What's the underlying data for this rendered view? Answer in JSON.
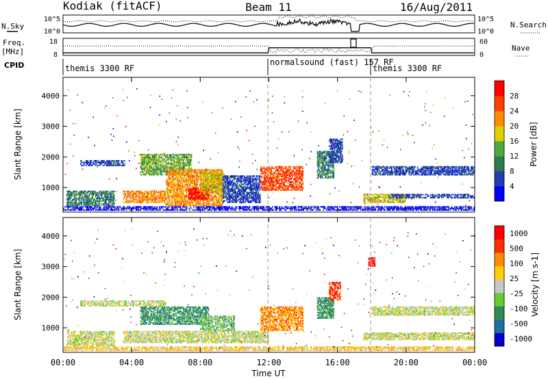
{
  "header": {
    "station": "Kodiak (fitACF)",
    "beam": "Beam 11",
    "date": "16/Aug/2011"
  },
  "top_panels": {
    "nsky_label": "N.Sky",
    "nsearch_label": "N.Search",
    "nsky_ticks": [
      "10^5",
      "10^0"
    ],
    "nsearch_ticks": [
      "10^5",
      "10^0"
    ],
    "freq_label": "Freq.",
    "freq_unit": "[MHz]",
    "freq_ticks": [
      "18",
      "8"
    ],
    "nave_label": "Nave",
    "nave_ticks": [
      "60",
      "0"
    ],
    "cpid_label": "CPID",
    "cpid_segments": [
      "themis 3300 RF",
      "normalsound (fast) 157 RF",
      "themis 3300 RF"
    ]
  },
  "chart_data": [
    {
      "type": "heatmap",
      "name": "power",
      "ylabel": "Slant Range [km]",
      "yticks": [
        "1000",
        "2000",
        "3000",
        "4000"
      ],
      "ylim": [
        200,
        4600
      ],
      "xlim": [
        "00:00",
        "24:00"
      ],
      "colorbar_label": "Power [dB]",
      "colorbar_ticks": [
        "4",
        "8",
        "12",
        "16",
        "20",
        "24",
        "28"
      ],
      "colors": [
        "#0000ff",
        "#1f3fb0",
        "#2e7a4e",
        "#4aaa3c",
        "#e0d000",
        "#ff8c00",
        "#ff4000",
        "#ff0000"
      ],
      "blobs": [
        {
          "t0": 0.2,
          "t1": 3.0,
          "r0": 400,
          "r1": 900,
          "level": 2
        },
        {
          "t0": 1.0,
          "t1": 3.6,
          "r0": 1700,
          "r1": 1900,
          "level": 1
        },
        {
          "t0": 3.5,
          "t1": 6.0,
          "r0": 500,
          "r1": 900,
          "level": 5
        },
        {
          "t0": 4.5,
          "t1": 7.5,
          "r0": 1400,
          "r1": 2100,
          "level": 3
        },
        {
          "t0": 6.0,
          "t1": 9.3,
          "r0": 400,
          "r1": 1600,
          "level": 5
        },
        {
          "t0": 7.3,
          "t1": 8.5,
          "r0": 600,
          "r1": 1000,
          "level": 7
        },
        {
          "t0": 8.0,
          "t1": 9.4,
          "r0": 800,
          "r1": 1500,
          "level": 4
        },
        {
          "t0": 9.3,
          "t1": 11.5,
          "r0": 500,
          "r1": 1400,
          "level": 1
        },
        {
          "t0": 11.5,
          "t1": 14.0,
          "r0": 900,
          "r1": 1700,
          "level": 6
        },
        {
          "t0": 14.8,
          "t1": 15.8,
          "r0": 1300,
          "r1": 2200,
          "level": 2
        },
        {
          "t0": 15.5,
          "t1": 16.3,
          "r0": 1800,
          "r1": 2600,
          "level": 1
        },
        {
          "t0": 17.5,
          "t1": 20.0,
          "r0": 500,
          "r1": 800,
          "level": 4
        },
        {
          "t0": 18.0,
          "t1": 24.0,
          "r0": 1400,
          "r1": 1700,
          "level": 1
        },
        {
          "t0": 19.0,
          "t1": 24.0,
          "r0": 650,
          "r1": 800,
          "level": 1
        },
        {
          "t0": 0.0,
          "t1": 24.0,
          "r0": 250,
          "r1": 400,
          "level": 0
        }
      ]
    },
    {
      "type": "heatmap",
      "name": "velocity",
      "ylabel": "Slant Range [km]",
      "yticks": [
        "1000",
        "2000",
        "3000",
        "4000"
      ],
      "ylim": [
        200,
        4600
      ],
      "xlabel": "Time UT",
      "xticks": [
        "00:00",
        "04:00",
        "08:00",
        "12:00",
        "16:00",
        "20:00",
        "00:00"
      ],
      "xlim": [
        "00:00",
        "24:00"
      ],
      "colorbar_label": "Velocity [m s-1]",
      "colorbar_ticks": [
        "1000",
        "500",
        "100",
        "25",
        "-25",
        "-100",
        "-500",
        "-1000"
      ],
      "colors": [
        "#0000cc",
        "#1f6fa0",
        "#2e8b57",
        "#66cc33",
        "#c8c8c8",
        "#ffd000",
        "#ff8c00",
        "#ff3000",
        "#ff0000"
      ],
      "blobs": [
        {
          "t0": 0.2,
          "t1": 3.0,
          "r0": 400,
          "r1": 900,
          "level": 4
        },
        {
          "t0": 1.0,
          "t1": 6.0,
          "r0": 1700,
          "r1": 1900,
          "level": 4
        },
        {
          "t0": 4.5,
          "t1": 8.5,
          "r0": 1100,
          "r1": 1700,
          "level": 2
        },
        {
          "t0": 3.5,
          "t1": 12.0,
          "r0": 500,
          "r1": 900,
          "level": 4
        },
        {
          "t0": 8.0,
          "t1": 10.0,
          "r0": 900,
          "r1": 1400,
          "level": 3
        },
        {
          "t0": 11.5,
          "t1": 14.0,
          "r0": 900,
          "r1": 1700,
          "level": 6
        },
        {
          "t0": 14.8,
          "t1": 15.8,
          "r0": 1300,
          "r1": 2000,
          "level": 2
        },
        {
          "t0": 15.5,
          "t1": 16.2,
          "r0": 1900,
          "r1": 2500,
          "level": 7
        },
        {
          "t0": 17.5,
          "t1": 24.0,
          "r0": 600,
          "r1": 850,
          "level": 4
        },
        {
          "t0": 18.0,
          "t1": 24.0,
          "r0": 1400,
          "r1": 1700,
          "level": 4
        },
        {
          "t0": 17.8,
          "t1": 18.2,
          "r0": 3000,
          "r1": 3300,
          "level": 8
        },
        {
          "t0": 0.0,
          "t1": 24.0,
          "r0": 250,
          "r1": 400,
          "level": 5
        }
      ]
    }
  ]
}
